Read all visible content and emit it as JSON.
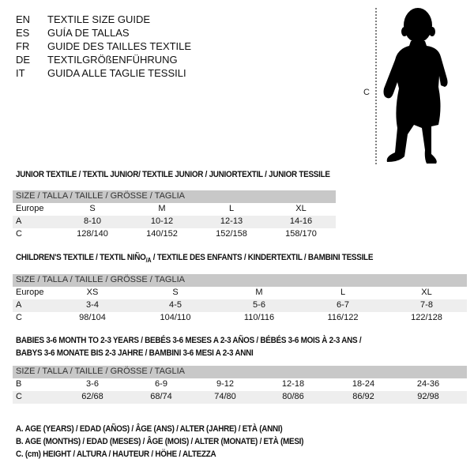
{
  "languages": [
    {
      "code": "EN",
      "title": "TEXTILE SIZE GUIDE"
    },
    {
      "code": "ES",
      "title": "GUÍA DE TALLAS"
    },
    {
      "code": "FR",
      "title": "GUIDE DES TAILLES TEXTILE"
    },
    {
      "code": "DE",
      "title": "TEXTILGRÖßENFÜHRUNG"
    },
    {
      "code": "IT",
      "title": "GUIDA ALLE TAGLIE TESSILI"
    }
  ],
  "figure": {
    "height_marker": "C"
  },
  "header_label": "SIZE / TALLA / TAILLE / GRÖSSE / TAGLIA",
  "junior": {
    "title": "JUNIOR TEXTILE / TEXTIL JUNIOR/ TEXTILE JUNIOR / JUNIORTEXTIL / JUNIOR TESSILE",
    "rows": [
      {
        "label": "Europe",
        "values": [
          "S",
          "M",
          "L",
          "XL"
        ]
      },
      {
        "label": "A",
        "values": [
          "8-10",
          "10-12",
          "12-13",
          "14-16"
        ]
      },
      {
        "label": "C",
        "values": [
          "128/140",
          "140/152",
          "152/158",
          "158/170"
        ]
      }
    ]
  },
  "children": {
    "title_pre": "CHILDREN'S TEXTILE / TEXTIL NIÑO",
    "title_sub": "/A",
    "title_post": " / TEXTILE DES ENFANTS / KINDERTEXTIL / BAMBINI TESSILE",
    "rows": [
      {
        "label": "Europe",
        "values": [
          "XS",
          "S",
          "M",
          "L",
          "XL"
        ]
      },
      {
        "label": "A",
        "values": [
          "3-4",
          "4-5",
          "5-6",
          "6-7",
          "7-8"
        ]
      },
      {
        "label": "C",
        "values": [
          "98/104",
          "104/110",
          "110/116",
          "116/122",
          "122/128"
        ]
      }
    ]
  },
  "babies": {
    "title_line1": "BABIES 3-6 MONTH TO 2-3 YEARS / BEBÉS 3-6 MESES A 2-3 AÑOS / BÉBÉS 3-6 MOIS À 2-3 ANS /",
    "title_line2": "BABYS 3-6 MONATE BIS 2-3 JAHRE / BAMBINI 3-6 MESI A 2-3 ANNI",
    "rows": [
      {
        "label": "B",
        "values": [
          "3-6",
          "6-9",
          "9-12",
          "12-18",
          "18-24",
          "24-36"
        ]
      },
      {
        "label": "C",
        "values": [
          "62/68",
          "68/74",
          "74/80",
          "80/86",
          "86/92",
          "92/98"
        ]
      }
    ]
  },
  "legend": [
    "A. AGE (YEARS) / EDAD (AÑOS) / ÂGE (ANS) / ALTER (JAHRE) / ETÀ (ANNI)",
    "B. AGE (MONTHS) / EDAD (MESES) / ÂGE (MOIS) / ALTER (MONATE) / ETÀ (MESI)",
    "C. (cm) HEIGHT / ALTURA / HAUTEUR / HÖHE / ALTEZZA"
  ]
}
